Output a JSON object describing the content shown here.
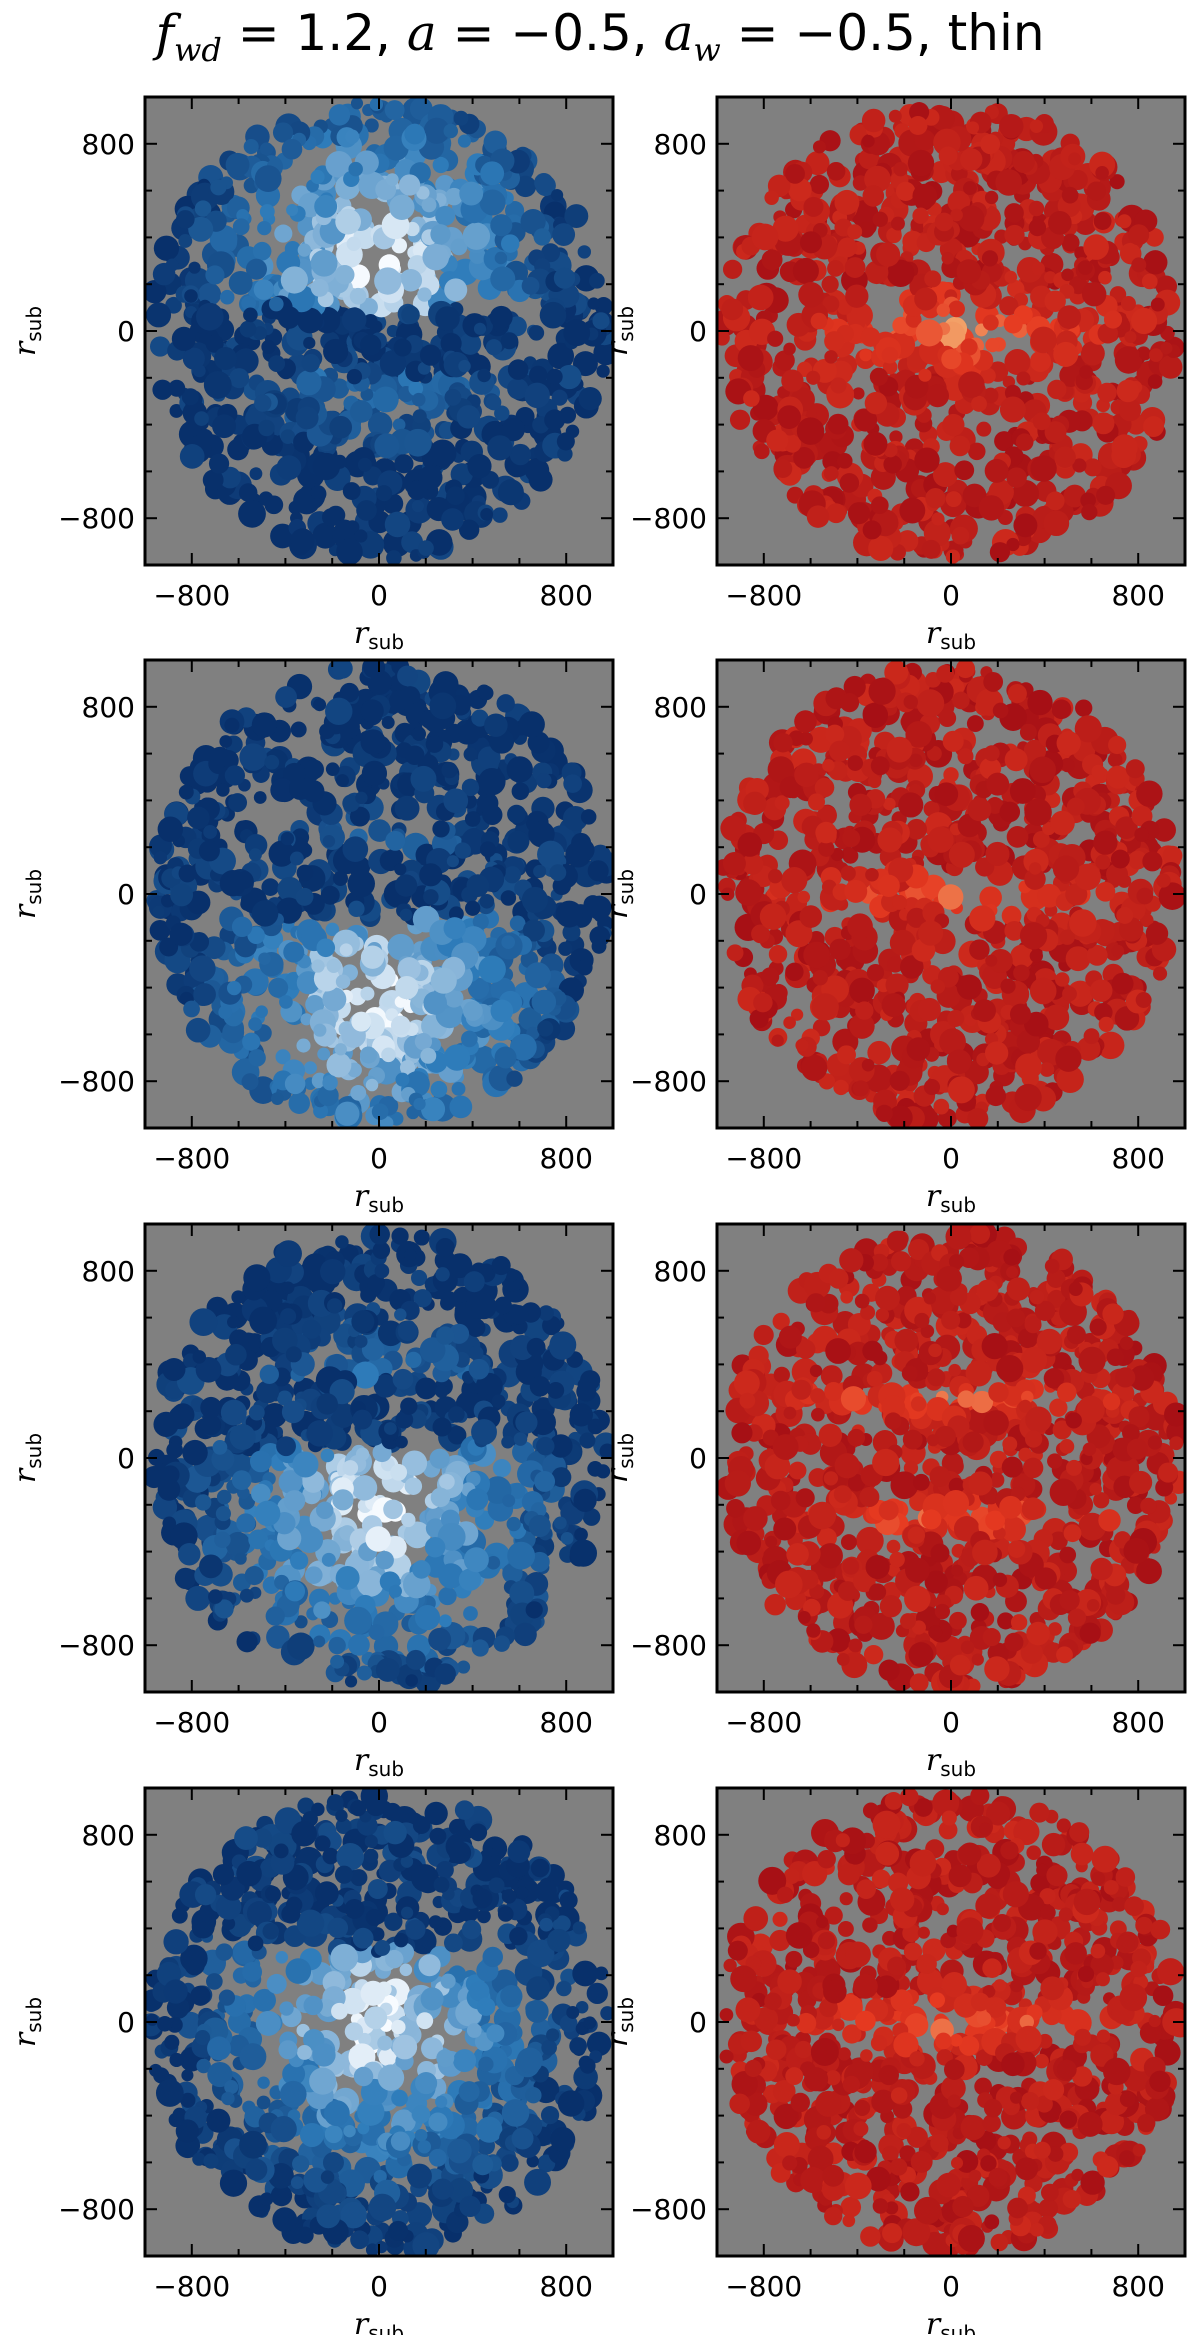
{
  "title": {
    "f_sym": "f",
    "f_sub": "wd",
    "f_val": " = 1.2, ",
    "a_sym": "a",
    "a_val": " = −0.5, ",
    "aw_sym": "a",
    "aw_sub": "w",
    "aw_val": " = −0.5, thin"
  },
  "axis_label": {
    "main": "r",
    "sub": "sub"
  },
  "colors": {
    "background": "#808080",
    "blue_dark": "#08306b",
    "blue_mid": "#2f7dbb",
    "blue_light": "#f7fbff",
    "red_dark": "#a50f15",
    "red_mid": "#e63a21",
    "red_light": "#fff2a0"
  },
  "chart_data": {
    "type": "heatmap",
    "layout": "4 rows x 2 columns of panels",
    "columns": [
      "blue colormap",
      "red colormap"
    ],
    "xlim": [
      -1000,
      1000
    ],
    "ylim": [
      -1000,
      1000
    ],
    "xticks": [
      -800,
      0,
      800
    ],
    "yticks": [
      -800,
      0,
      800
    ],
    "x_tick_labels": [
      "−800",
      "0",
      "800"
    ],
    "y_tick_labels": [
      "−800",
      "0",
      "800"
    ],
    "xlabel": "r_sub",
    "ylabel": "r_sub",
    "footprint": "roughly circular footprint of radius ~1000 on grey (no data) background",
    "rows": [
      {
        "row": 1,
        "blue_bright_region": "upper center near (0, 300)",
        "blue_dark_band_y": [
          -200,
          100
        ],
        "red_bright": "scattered, center"
      },
      {
        "row": 2,
        "blue_bright_region": "lower half",
        "blue_dark_band_y": [
          -100,
          200
        ],
        "red_bright": "horizontal band near y=0"
      },
      {
        "row": 3,
        "blue_bright_region": "lower center near (0, -200)",
        "blue_dark_band_y": [
          50,
          350
        ],
        "red_bright": "two bands near y=+250 and y=-250"
      },
      {
        "row": 4,
        "blue_bright_region": "center near (0, 0)",
        "blue_dark_band_y": [
          300,
          800
        ],
        "red_bright": "wide horizontal band near y=0"
      }
    ]
  }
}
